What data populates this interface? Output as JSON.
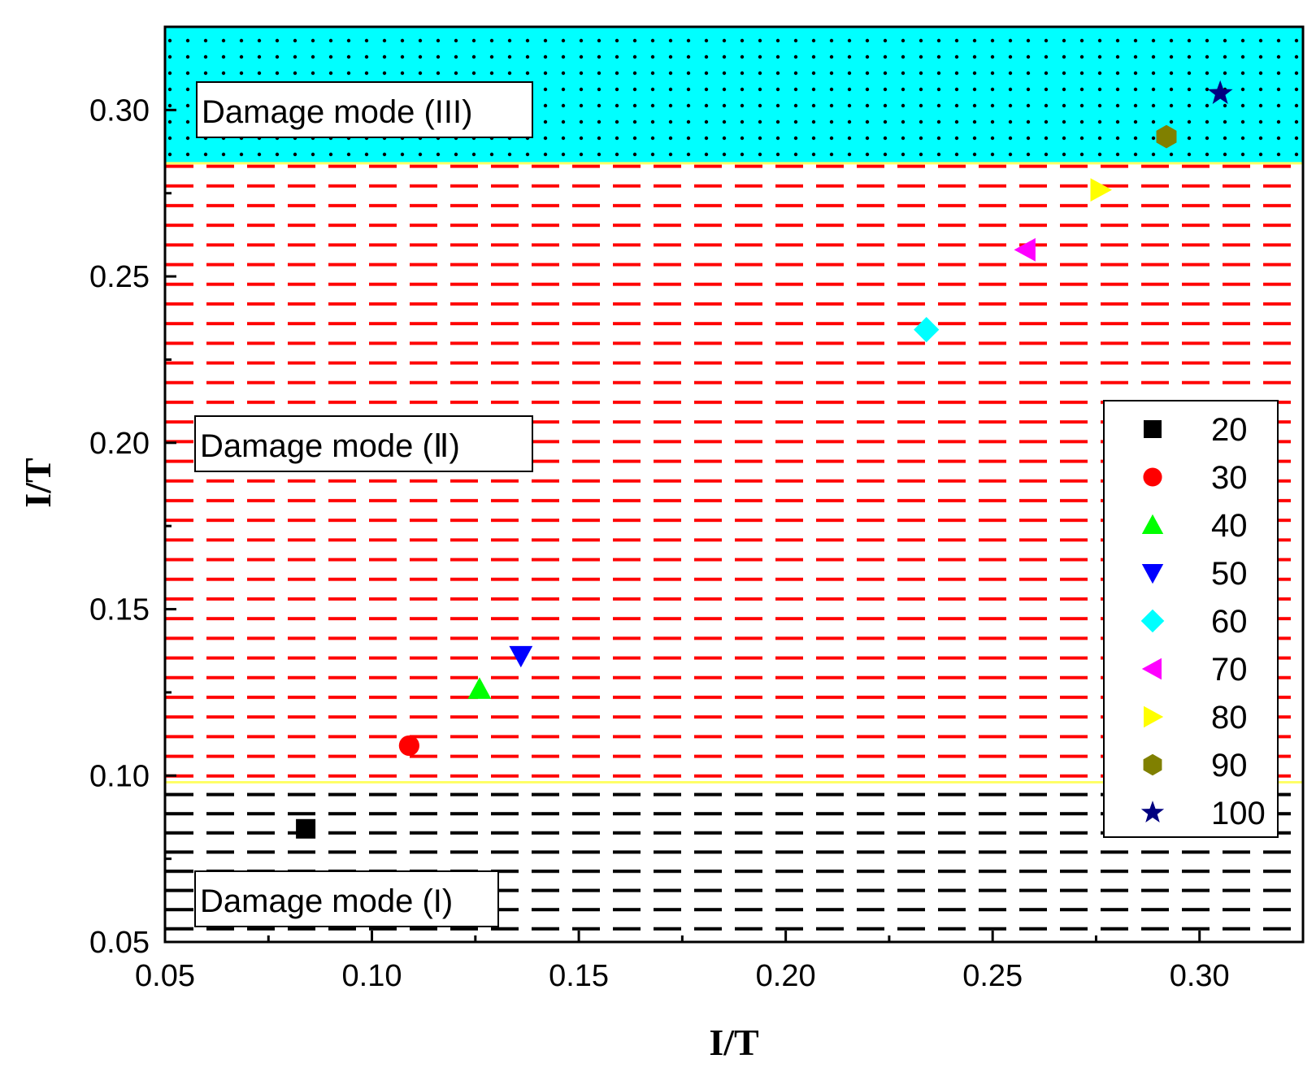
{
  "chart_data": {
    "type": "scatter",
    "title": "",
    "xlabel": "I/T",
    "ylabel": "I/T",
    "xlim": [
      0.05,
      0.325
    ],
    "ylim": [
      0.05,
      0.325
    ],
    "xticks": [
      "0.05",
      "0.10",
      "0.15",
      "0.20",
      "0.25",
      "0.30"
    ],
    "yticks": [
      "0.05",
      "0.10",
      "0.15",
      "0.20",
      "0.25",
      "0.30"
    ],
    "regions": [
      {
        "name": "Damage mode (I)",
        "ymin": 0.05,
        "ymax": 0.098,
        "fill": "black dashed lines"
      },
      {
        "name": "Damage mode (Ⅱ)",
        "ymin": 0.098,
        "ymax": 0.284,
        "fill": "red dashed lines"
      },
      {
        "name": "Damage mode (III)",
        "ymin": 0.284,
        "ymax": 0.325,
        "fill": "cyan with black dots"
      }
    ],
    "series": [
      {
        "name": "20",
        "x": 0.084,
        "y": 0.084,
        "marker": "square",
        "color": "#000000"
      },
      {
        "name": "30",
        "x": 0.109,
        "y": 0.109,
        "marker": "circle",
        "color": "#ff0000"
      },
      {
        "name": "40",
        "x": 0.126,
        "y": 0.126,
        "marker": "triangle-up",
        "color": "#00ff00"
      },
      {
        "name": "50",
        "x": 0.136,
        "y": 0.136,
        "marker": "triangle-down",
        "color": "#0000ff"
      },
      {
        "name": "60",
        "x": 0.234,
        "y": 0.234,
        "marker": "diamond",
        "color": "#00ffff"
      },
      {
        "name": "70",
        "x": 0.258,
        "y": 0.258,
        "marker": "triangle-left",
        "color": "#ff00ff"
      },
      {
        "name": "80",
        "x": 0.276,
        "y": 0.276,
        "marker": "triangle-right",
        "color": "#ffff00"
      },
      {
        "name": "90",
        "x": 0.292,
        "y": 0.292,
        "marker": "hexagon",
        "color": "#808000"
      },
      {
        "name": "100",
        "x": 0.305,
        "y": 0.305,
        "marker": "star",
        "color": "#000080"
      }
    ],
    "legend_position": "right"
  },
  "regions_text": {
    "mode1": "Damage mode (I)",
    "mode2": "Damage mode (Ⅱ)",
    "mode3": "Damage mode (III)"
  }
}
